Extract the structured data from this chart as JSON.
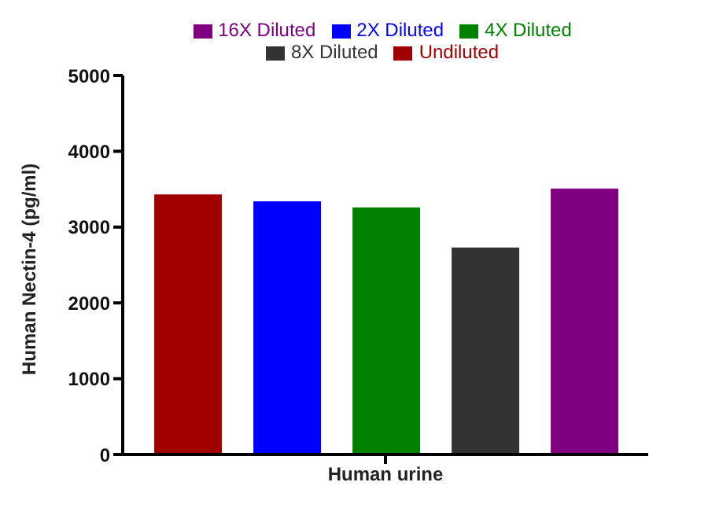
{
  "chart_data": {
    "type": "bar",
    "categories": [
      "Human urine"
    ],
    "ylabel": "Human Nectin-4 (pg/ml)",
    "series": [
      {
        "name": "Undiluted",
        "color": "#a00000",
        "values": [
          3430
        ]
      },
      {
        "name": "2X Diluted",
        "color": "#0000ff",
        "values": [
          3340
        ]
      },
      {
        "name": "4X Diluted",
        "color": "#008000",
        "values": [
          3260
        ]
      },
      {
        "name": "8X Diluted",
        "color": "#333333",
        "values": [
          2730
        ]
      },
      {
        "name": "16X Diluted",
        "color": "#800080",
        "values": [
          3510
        ]
      }
    ],
    "ylim": [
      0,
      5000
    ],
    "yticks": [
      0,
      1000,
      2000,
      3000,
      4000,
      5000
    ],
    "grid": false,
    "legend": "top"
  }
}
